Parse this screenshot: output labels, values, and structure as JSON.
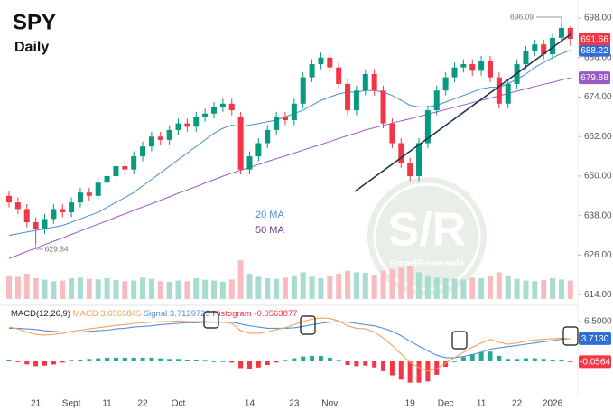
{
  "chart_data": [
    {
      "type": "candlestick",
      "title": "SPY",
      "subtitle": "Daily",
      "categories": [
        null,
        null,
        null,
        "21",
        null,
        null,
        null,
        "Sept",
        null,
        null,
        null,
        "11",
        null,
        null,
        null,
        "22",
        null,
        null,
        null,
        "Oct",
        null,
        null,
        null,
        null,
        null,
        null,
        null,
        "14",
        null,
        null,
        null,
        null,
        "23",
        null,
        null,
        null,
        "Nov",
        null,
        null,
        null,
        null,
        null,
        null,
        null,
        null,
        "19",
        null,
        null,
        null,
        "Dec",
        null,
        null,
        null,
        "11",
        null,
        null,
        null,
        "22",
        null,
        null,
        null,
        "2026",
        null,
        null
      ],
      "open": [
        644,
        642,
        640,
        636,
        634,
        637,
        640,
        639,
        642,
        645,
        644,
        648,
        650,
        653,
        652,
        656,
        659,
        662,
        661,
        664,
        666,
        665,
        668,
        669,
        671,
        672,
        668,
        652,
        656,
        660,
        664,
        668,
        667,
        672,
        680,
        684,
        686,
        683,
        678,
        670,
        676,
        681,
        676,
        666,
        660,
        654,
        650,
        660,
        670,
        676,
        680,
        683,
        684,
        682,
        685,
        680,
        672,
        678,
        684,
        688,
        690,
        687,
        692,
        695
      ],
      "high": [
        645.5,
        643.5,
        641.5,
        637.5,
        638.5,
        641.5,
        641.5,
        643.5,
        646.5,
        646.5,
        649.5,
        651.5,
        654.5,
        654.5,
        657.5,
        660.5,
        663.5,
        663.5,
        665.5,
        667.5,
        667.5,
        669.5,
        670.5,
        672.5,
        673.5,
        673.5,
        669.5,
        657.5,
        661.5,
        665.5,
        669.5,
        669.5,
        673.5,
        681.5,
        685.5,
        687.5,
        687.5,
        684.5,
        679.5,
        677.5,
        682.5,
        682.5,
        677.5,
        667.5,
        661.5,
        655.5,
        661.5,
        671.5,
        677.5,
        681.5,
        684.5,
        685.5,
        685.5,
        686.5,
        686.5,
        681.5,
        679.5,
        685.5,
        689.5,
        691.5,
        691.5,
        693.5,
        696.09,
        695.5
      ],
      "low": [
        640.5,
        638.5,
        634.5,
        629.34,
        632.5,
        635.5,
        637.5,
        637.5,
        640.5,
        642.5,
        642.5,
        646.5,
        648.5,
        650.5,
        650.5,
        654.5,
        657.5,
        659.5,
        659.5,
        662.5,
        663.5,
        663.5,
        666.5,
        667.5,
        669.5,
        668.5,
        650.5,
        650.5,
        654.5,
        658.5,
        662.5,
        665.5,
        665.5,
        670.5,
        678.5,
        682.5,
        681.5,
        676.5,
        668.5,
        668.5,
        674.5,
        674.5,
        664.5,
        658.5,
        652.5,
        648.5,
        648.5,
        658.5,
        668.5,
        674.5,
        678.5,
        681.5,
        680.5,
        680.5,
        678.5,
        670.5,
        670.5,
        676.5,
        682.5,
        686.5,
        685.5,
        685.5,
        690.5,
        689.5
      ],
      "close": [
        642,
        640,
        636,
        634,
        637,
        640,
        639,
        642,
        645,
        644,
        648,
        650,
        653,
        652,
        656,
        659,
        662,
        661,
        664,
        666,
        665,
        668,
        669,
        671,
        672,
        670,
        652,
        656,
        660,
        664,
        668,
        667,
        672,
        680,
        684,
        686,
        683,
        678,
        670,
        676,
        681,
        676,
        666,
        660,
        654,
        650,
        660,
        670,
        676,
        680,
        683,
        684,
        682,
        685,
        680,
        672,
        678,
        684,
        688,
        690,
        687,
        692,
        695,
        691.66
      ],
      "up_color": "#089981",
      "down_color": "#f23645",
      "volume": [
        80,
        75,
        85,
        70,
        65,
        60,
        62,
        70,
        72,
        68,
        66,
        70,
        64,
        60,
        62,
        72,
        68,
        60,
        58,
        62,
        60,
        70,
        65,
        62,
        58,
        66,
        130,
        85,
        75,
        70,
        68,
        72,
        80,
        90,
        75,
        70,
        78,
        85,
        95,
        90,
        88,
        82,
        95,
        100,
        105,
        110,
        90,
        80,
        72,
        70,
        68,
        66,
        72,
        70,
        78,
        90,
        80,
        68,
        62,
        60,
        64,
        70,
        66,
        62
      ],
      "overlays": [
        {
          "name": "20 MA",
          "color": "#4a90c8",
          "values": [
            632,
            632.5,
            633,
            633.5,
            634,
            634.5,
            635,
            636,
            637,
            638,
            639,
            640.5,
            642,
            643.5,
            645,
            647,
            649,
            651,
            653,
            655,
            657,
            659,
            661,
            663,
            664.5,
            665.5,
            665,
            665.5,
            666,
            666.5,
            667,
            668,
            669,
            670,
            671.5,
            673,
            674,
            675,
            675.5,
            675.5,
            676,
            676,
            675.5,
            674.5,
            673,
            671.5,
            671,
            671,
            671.5,
            672.5,
            673.5,
            674.5,
            675.5,
            676.5,
            677,
            677,
            678,
            679.5,
            681,
            683,
            684.5,
            686,
            687.2,
            688.22
          ]
        },
        {
          "name": "50 MA",
          "color": "#9b59c6",
          "values": [
            625,
            626,
            627.1,
            628.1,
            629.2,
            630.2,
            631.2,
            632.3,
            633.3,
            634.4,
            635.4,
            636.4,
            637.5,
            638.5,
            639.6,
            640.6,
            641.6,
            642.7,
            643.7,
            644.8,
            645.8,
            646.8,
            647.9,
            648.9,
            650,
            650.9,
            651.8,
            652.6,
            653.5,
            654.4,
            655.3,
            656.1,
            657,
            657.9,
            658.8,
            659.6,
            660.5,
            661.4,
            662.3,
            663.1,
            664,
            664.7,
            665.4,
            666.1,
            666.8,
            667.4,
            668.1,
            668.8,
            669.5,
            670.2,
            670.9,
            671.6,
            672.3,
            673,
            673.7,
            674.4,
            675.1,
            675.8,
            676.5,
            677.2,
            677.9,
            678.5,
            679.2,
            679.88
          ]
        }
      ],
      "ylim": [
        612.4,
        701.3
      ],
      "yticks": [
        {
          "value": 698,
          "label": "698.00"
        },
        {
          "value": 686,
          "label": "686.00"
        },
        {
          "value": 674,
          "label": "674.00"
        },
        {
          "value": 662,
          "label": "662.00"
        },
        {
          "value": 650,
          "label": "650.00"
        },
        {
          "value": 638,
          "label": "638.00"
        },
        {
          "value": 626,
          "label": "626.00"
        },
        {
          "value": 614,
          "label": "614.00"
        }
      ],
      "watermark": {
        "title": "S/R",
        "subtitle": "SmartReversals"
      }
    },
    {
      "type": "macd",
      "title": "MACD(12,26,9)",
      "ylim": [
        -4.73,
        8.42
      ],
      "yticks": [
        {
          "value": 6.5,
          "label": "6.5000"
        }
      ],
      "series": [
        {
          "name": "MACD",
          "value_label": "3.6565845",
          "color": "#f5a05a",
          "values": [
            5.6,
            5.3,
            4.8,
            4.4,
            4.3,
            4.4,
            4.6,
            4.9,
            5.1,
            5.3,
            5.5,
            5.7,
            5.9,
            6,
            6.2,
            6.3,
            6.4,
            6.5,
            6.5,
            6.6,
            6.5,
            6.5,
            6.5,
            6.4,
            6.4,
            6.2,
            5,
            4.6,
            4.6,
            4.8,
            5.2,
            5.5,
            6,
            6.5,
            6.9,
            7.1,
            7,
            6.6,
            5.8,
            5.4,
            5.3,
            4.8,
            3.8,
            2.6,
            1.2,
            -0.2,
            -1,
            -1.6,
            -1.2,
            -0.3,
            0.6,
            1.5,
            2.3,
            3,
            3.6,
            3.1,
            2.8,
            3,
            3.3,
            3.5,
            3.6,
            3.7,
            3.8,
            3.6565845
          ]
        },
        {
          "name": "Signal",
          "value_label": "3.7129723",
          "badge_label": "3.7130",
          "color": "#5b8fd6",
          "values": [
            5.4,
            5.4,
            5.3,
            5.2,
            5,
            4.9,
            4.8,
            4.8,
            4.8,
            4.9,
            5,
            5.1,
            5.3,
            5.4,
            5.6,
            5.7,
            5.8,
            6,
            6.1,
            6.2,
            6.3,
            6.3,
            6.4,
            6.4,
            6.4,
            6.4,
            6.1,
            5.8,
            5.6,
            5.4,
            5.4,
            5.4,
            5.5,
            5.7,
            6,
            6.2,
            6.4,
            6.5,
            6.4,
            6.2,
            6,
            5.8,
            5.4,
            4.9,
            4.2,
            3.3,
            2.5,
            1.7,
            1,
            0.6,
            0.6,
            0.8,
            1.1,
            1.5,
            2,
            2.2,
            2.4,
            2.6,
            2.8,
            3,
            3.2,
            3.4,
            3.6,
            3.7129723
          ]
        },
        {
          "name": "Histogram",
          "value_label": "-0.0563877",
          "badge_label": "-0.0564",
          "color": "#f23645",
          "up_color": "#22ab94",
          "down_color": "#f23645",
          "values": [
            0.2,
            -0.1,
            -0.5,
            -0.8,
            -0.7,
            -0.5,
            -0.2,
            0.1,
            0.3,
            0.4,
            0.5,
            0.6,
            0.6,
            0.6,
            0.6,
            0.6,
            0.6,
            0.5,
            0.4,
            0.4,
            0.2,
            0.2,
            0.1,
            0,
            0,
            -0.2,
            -1.1,
            -1.2,
            -1,
            -0.6,
            -0.2,
            0.1,
            0.5,
            0.8,
            0.9,
            0.9,
            0.6,
            0.1,
            -0.6,
            -0.8,
            -0.7,
            -1,
            -1.6,
            -2.3,
            -3,
            -3.5,
            -3.5,
            -3.3,
            -2.2,
            -0.9,
            0,
            0.7,
            1.2,
            1.5,
            1.6,
            0.9,
            0.4,
            0.4,
            0.5,
            0.5,
            0.4,
            0.3,
            0.2,
            -0.0563877
          ]
        }
      ]
    }
  ]
}
